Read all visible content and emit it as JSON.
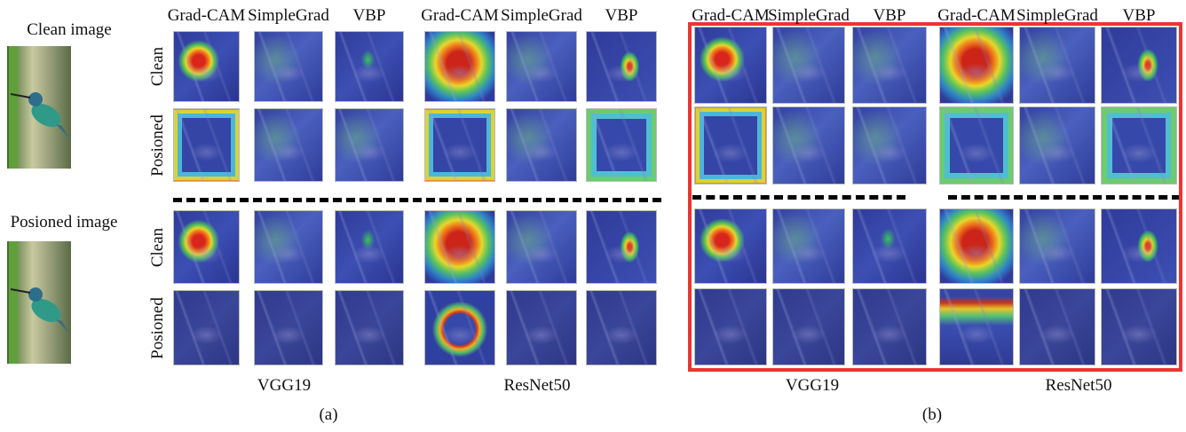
{
  "left": {
    "clean_label": "Clean image",
    "poisoned_label": "Posioned image"
  },
  "panels": [
    {
      "methods": [
        "Grad-CAM",
        "SimpleGrad",
        "VBP",
        "Grad-CAM",
        "SimpleGrad",
        "VBP"
      ],
      "row_labels": [
        "Clean",
        "Posioned",
        "Clean",
        "Posioned"
      ],
      "models": [
        "VGG19",
        "ResNet50"
      ],
      "caption": "(a)"
    },
    {
      "methods": [
        "Grad-CAM",
        "SimpleGrad",
        "VBP",
        "Grad-CAM",
        "SimpleGrad",
        "VBP"
      ],
      "models": [
        "VGG19",
        "ResNet50"
      ],
      "caption": "(b)"
    }
  ]
}
